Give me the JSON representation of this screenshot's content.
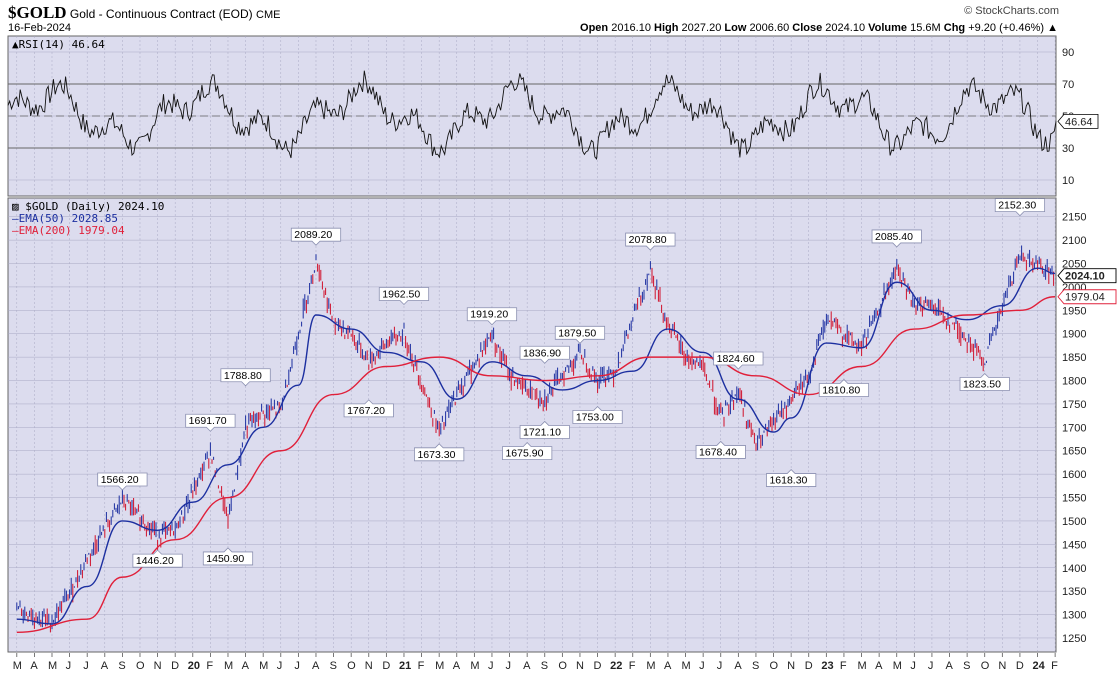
{
  "header": {
    "symbol": "$GOLD",
    "description": "Gold - Continuous Contract (EOD)",
    "exchange": "CME",
    "copyright": "© StockCharts.com",
    "date": "16-Feb-2024",
    "open_label": "Open",
    "open": "2016.10",
    "high_label": "High",
    "high": "2027.20",
    "low_label": "Low",
    "low": "2006.60",
    "close_label": "Close",
    "close": "2024.10",
    "volume_label": "Volume",
    "volume": "15.6M",
    "chg_label": "Chg",
    "chg": "+9.20 (+0.46%)",
    "chg_arrow": "▲"
  },
  "colors": {
    "panel_bg": "#dcdcee",
    "grid": "#a9a9c4",
    "ema50": "#1c2fa0",
    "ema200": "#e0203a",
    "price_up": "#1c2fa0",
    "price_down": "#d0102a",
    "rsi_line": "#111111",
    "rsi_fill": "#3d7a3d"
  },
  "chart_data": [
    {
      "type": "line",
      "panel": "indicator",
      "legend": "RSI(14) 46.64",
      "series": [
        {
          "name": "RSI(14)",
          "last": 46.64
        }
      ],
      "ylim": [
        0,
        100
      ],
      "yticks": [
        10,
        30,
        50,
        70,
        90
      ],
      "reference_lines": [
        30,
        50,
        70
      ],
      "last_value_label": "46.64"
    },
    {
      "type": "line",
      "panel": "price",
      "legend": [
        {
          "name": "$GOLD (Daily) 2024.10",
          "color": "#000000"
        },
        {
          "name": "EMA(50) 2028.85",
          "color": "#1c2fa0"
        },
        {
          "name": "EMA(200) 1979.04",
          "color": "#e0203a"
        }
      ],
      "ylim": [
        1220,
        2190
      ],
      "yticks": [
        1250,
        1300,
        1350,
        1400,
        1450,
        1500,
        1550,
        1600,
        1650,
        1700,
        1750,
        1800,
        1850,
        1900,
        1950,
        2000,
        2050,
        2100,
        2150
      ],
      "x_ticks": [
        "M",
        "A",
        "M",
        "J",
        "J",
        "A",
        "S",
        "O",
        "N",
        "D",
        "20",
        "F",
        "M",
        "A",
        "M",
        "J",
        "J",
        "A",
        "S",
        "O",
        "N",
        "D",
        "21",
        "F",
        "M",
        "A",
        "M",
        "J",
        "J",
        "A",
        "S",
        "O",
        "N",
        "D",
        "22",
        "F",
        "M",
        "A",
        "M",
        "J",
        "J",
        "A",
        "S",
        "O",
        "N",
        "D",
        "23",
        "F",
        "M",
        "A",
        "M",
        "J",
        "J",
        "A",
        "S",
        "O",
        "N",
        "D",
        "24",
        "F"
      ],
      "x_start": "2019-03",
      "x_end": "2024-02",
      "series": [
        {
          "name": "$GOLD (Daily)",
          "x": [
            "2019-03",
            "2019-05",
            "2019-06",
            "2019-07",
            "2019-09",
            "2019-11",
            "2019-12",
            "2020-01",
            "2020-02",
            "2020-03",
            "2020-04",
            "2020-05",
            "2020-06",
            "2020-07",
            "2020-08",
            "2020-09",
            "2020-10",
            "2020-11",
            "2020-12",
            "2021-01",
            "2021-03",
            "2021-04",
            "2021-06",
            "2021-07",
            "2021-08",
            "2021-09",
            "2021-11",
            "2021-12",
            "2022-01",
            "2022-03",
            "2022-04",
            "2022-05",
            "2022-06",
            "2022-07",
            "2022-08",
            "2022-09",
            "2022-11",
            "2022-12",
            "2023-01",
            "2023-03",
            "2023-05",
            "2023-06",
            "2023-07",
            "2023-08",
            "2023-10",
            "2023-12",
            "2024-01",
            "2024-02"
          ],
          "y": [
            1310,
            1285,
            1345,
            1420,
            1545,
            1470,
            1480,
            1560,
            1650,
            1500,
            1700,
            1730,
            1740,
            1900,
            2060,
            1920,
            1900,
            1840,
            1880,
            1900,
            1690,
            1770,
            1900,
            1810,
            1780,
            1760,
            1860,
            1800,
            1820,
            2040,
            1920,
            1850,
            1830,
            1720,
            1780,
            1660,
            1760,
            1810,
            1930,
            1870,
            2040,
            1960,
            1960,
            1930,
            1840,
            2070,
            2050,
            2024.1
          ]
        },
        {
          "name": "EMA(50)",
          "x": [
            "2019-03",
            "2019-05",
            "2019-07",
            "2019-09",
            "2019-11",
            "2020-01",
            "2020-03",
            "2020-05",
            "2020-07",
            "2020-08",
            "2020-10",
            "2020-12",
            "2021-02",
            "2021-04",
            "2021-06",
            "2021-08",
            "2021-10",
            "2021-12",
            "2022-02",
            "2022-04",
            "2022-06",
            "2022-08",
            "2022-10",
            "2022-11",
            "2023-01",
            "2023-03",
            "2023-05",
            "2023-07",
            "2023-09",
            "2023-11",
            "2024-01",
            "2024-02"
          ],
          "y": [
            1290,
            1280,
            1360,
            1500,
            1480,
            1540,
            1620,
            1700,
            1790,
            1940,
            1910,
            1860,
            1840,
            1760,
            1840,
            1810,
            1780,
            1800,
            1820,
            1910,
            1860,
            1760,
            1690,
            1720,
            1880,
            1870,
            2010,
            1950,
            1930,
            1960,
            2040,
            2028.85
          ]
        },
        {
          "name": "EMA(200)",
          "x": [
            "2019-03",
            "2019-07",
            "2019-09",
            "2019-12",
            "2020-03",
            "2020-06",
            "2020-09",
            "2020-12",
            "2021-03",
            "2021-06",
            "2021-09",
            "2021-12",
            "2022-03",
            "2022-06",
            "2022-09",
            "2022-12",
            "2023-03",
            "2023-06",
            "2023-09",
            "2023-12",
            "2024-02"
          ],
          "y": [
            1262,
            1290,
            1380,
            1460,
            1550,
            1650,
            1770,
            1830,
            1850,
            1810,
            1800,
            1810,
            1850,
            1850,
            1810,
            1770,
            1830,
            1910,
            1940,
            1950,
            1979.04
          ]
        }
      ],
      "annotations": [
        {
          "label": "1566.20",
          "x": "2019-09",
          "y": 1566.2,
          "kind": "high"
        },
        {
          "label": "1446.20",
          "x": "2019-11",
          "y": 1446.2,
          "kind": "low"
        },
        {
          "label": "1691.70",
          "x": "2020-02",
          "y": 1691.7,
          "kind": "high"
        },
        {
          "label": "1450.90",
          "x": "2020-03",
          "y": 1450.9,
          "kind": "low"
        },
        {
          "label": "1788.80",
          "x": "2020-04",
          "y": 1788.8,
          "kind": "high"
        },
        {
          "label": "2089.20",
          "x": "2020-08",
          "y": 2089.2,
          "kind": "high"
        },
        {
          "label": "1767.20",
          "x": "2020-11",
          "y": 1767.2,
          "kind": "low"
        },
        {
          "label": "1962.50",
          "x": "2021-01",
          "y": 1962.5,
          "kind": "high"
        },
        {
          "label": "1673.30",
          "x": "2021-03",
          "y": 1673.3,
          "kind": "low"
        },
        {
          "label": "1919.20",
          "x": "2021-06",
          "y": 1919.2,
          "kind": "high"
        },
        {
          "label": "1675.90",
          "x": "2021-08",
          "y": 1675.9,
          "kind": "low"
        },
        {
          "label": "1836.90",
          "x": "2021-09",
          "y": 1836.9,
          "kind": "high"
        },
        {
          "label": "1721.10",
          "x": "2021-09",
          "y": 1721.1,
          "kind": "low"
        },
        {
          "label": "1879.50",
          "x": "2021-11",
          "y": 1879.5,
          "kind": "high"
        },
        {
          "label": "1753.00",
          "x": "2021-12",
          "y": 1753.0,
          "kind": "low"
        },
        {
          "label": "2078.80",
          "x": "2022-03",
          "y": 2078.8,
          "kind": "high"
        },
        {
          "label": "1678.40",
          "x": "2022-07",
          "y": 1678.4,
          "kind": "low"
        },
        {
          "label": "1824.60",
          "x": "2022-08",
          "y": 1824.6,
          "kind": "high"
        },
        {
          "label": "1618.30",
          "x": "2022-11",
          "y": 1618.3,
          "kind": "low"
        },
        {
          "label": "1810.80",
          "x": "2023-02",
          "y": 1810.8,
          "kind": "low"
        },
        {
          "label": "2085.40",
          "x": "2023-05",
          "y": 2085.4,
          "kind": "high"
        },
        {
          "label": "1823.50",
          "x": "2023-10",
          "y": 1823.5,
          "kind": "low"
        },
        {
          "label": "2152.30",
          "x": "2023-12",
          "y": 2152.3,
          "kind": "high"
        }
      ],
      "last_value_labels": [
        {
          "label": "2024.10",
          "y": 2024.1,
          "color": "#000000"
        },
        {
          "label": "1979.04",
          "y": 1979.04,
          "color": "#e0203a"
        }
      ]
    }
  ]
}
